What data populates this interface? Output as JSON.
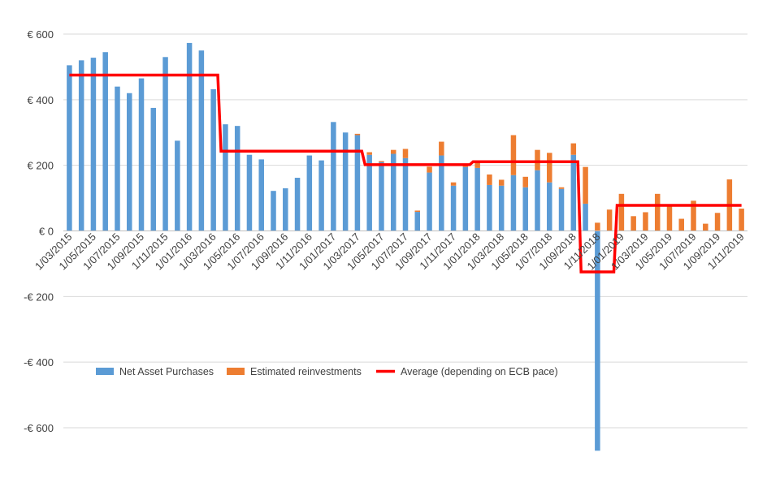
{
  "chart_data": {
    "type": "bar",
    "stacked": true,
    "title": "",
    "xlabel": "",
    "ylabel": "",
    "ylim": [
      -600,
      600
    ],
    "yticks": [
      -600,
      -400,
      -200,
      0,
      200,
      400,
      600
    ],
    "ytick_labels": [
      "-€ 600",
      "-€ 400",
      "-€ 200",
      "€ 0",
      "€ 200",
      "€ 400",
      "€ 600"
    ],
    "grid": "horizontal",
    "legend_position": "lower-center inside plot",
    "categories": [
      "1/03/2015",
      "1/04/2015",
      "1/05/2015",
      "1/06/2015",
      "1/07/2015",
      "1/08/2015",
      "1/09/2015",
      "1/10/2015",
      "1/11/2015",
      "1/12/2015",
      "1/01/2016",
      "1/02/2016",
      "1/03/2016",
      "1/04/2016",
      "1/05/2016",
      "1/06/2016",
      "1/07/2016",
      "1/08/2016",
      "1/09/2016",
      "1/10/2016",
      "1/11/2016",
      "1/12/2016",
      "1/01/2017",
      "1/02/2017",
      "1/03/2017",
      "1/04/2017",
      "1/05/2017",
      "1/06/2017",
      "1/07/2017",
      "1/08/2017",
      "1/09/2017",
      "1/10/2017",
      "1/11/2017",
      "1/12/2017",
      "1/01/2018",
      "1/02/2018",
      "1/03/2018",
      "1/04/2018",
      "1/05/2018",
      "1/06/2018",
      "1/07/2018",
      "1/08/2018",
      "1/09/2018",
      "1/10/2018",
      "1/11/2018",
      "1/12/2018",
      "1/01/2019",
      "1/02/2019",
      "1/03/2019",
      "1/04/2019",
      "1/05/2019",
      "1/06/2019",
      "1/07/2019",
      "1/08/2019",
      "1/09/2019",
      "1/10/2019",
      "1/11/2019"
    ],
    "xtick_labels": [
      "1/03/2015",
      "1/05/2015",
      "1/07/2015",
      "1/09/2015",
      "1/11/2015",
      "1/01/2016",
      "1/03/2016",
      "1/05/2016",
      "1/07/2016",
      "1/09/2016",
      "1/11/2016",
      "1/01/2017",
      "1/03/2017",
      "1/05/2017",
      "1/07/2017",
      "1/09/2017",
      "1/11/2017",
      "1/01/2018",
      "1/03/2018",
      "1/05/2018",
      "1/07/2018",
      "1/09/2018",
      "1/11/2018",
      "1/01/2019",
      "1/03/2019",
      "1/05/2019",
      "1/07/2019",
      "1/09/2019",
      "1/11/2019"
    ],
    "series": [
      {
        "name": "Net Asset Purchases",
        "kind": "bar",
        "color": "#5B9BD5",
        "values": [
          505,
          520,
          528,
          545,
          440,
          420,
          465,
          375,
          530,
          275,
          573,
          550,
          432,
          325,
          320,
          232,
          218,
          122,
          130,
          162,
          230,
          215,
          332,
          300,
          292,
          232,
          210,
          235,
          222,
          58,
          178,
          230,
          138,
          195,
          192,
          140,
          138,
          170,
          133,
          185,
          148,
          128,
          232,
          83,
          -670,
          0,
          0,
          0,
          0,
          0,
          0,
          0,
          0,
          0,
          0,
          0,
          0
        ]
      },
      {
        "name": "Estimated reinvestments",
        "kind": "bar",
        "color": "#ED7D31",
        "values": [
          0,
          0,
          0,
          0,
          0,
          0,
          0,
          0,
          0,
          0,
          0,
          0,
          0,
          0,
          0,
          0,
          0,
          0,
          0,
          0,
          0,
          0,
          0,
          0,
          4,
          8,
          3,
          12,
          28,
          4,
          18,
          42,
          10,
          8,
          18,
          32,
          18,
          122,
          32,
          62,
          90,
          5,
          35,
          112,
          25,
          65,
          113,
          45,
          57,
          113,
          77,
          37,
          92,
          22,
          55,
          157,
          68
        ]
      },
      {
        "name": "Average (depending on ECB pace)",
        "kind": "line",
        "color": "#FF0000",
        "values": [
          475,
          475,
          475,
          475,
          475,
          475,
          475,
          475,
          475,
          475,
          475,
          475,
          475,
          243,
          243,
          243,
          243,
          243,
          243,
          243,
          243,
          243,
          243,
          243,
          243,
          202,
          202,
          202,
          202,
          202,
          202,
          202,
          202,
          202,
          211,
          211,
          211,
          211,
          211,
          211,
          211,
          211,
          211,
          -125,
          -125,
          -125,
          78,
          78,
          78,
          78,
          78,
          78,
          78,
          78,
          78,
          78,
          78
        ]
      }
    ]
  }
}
